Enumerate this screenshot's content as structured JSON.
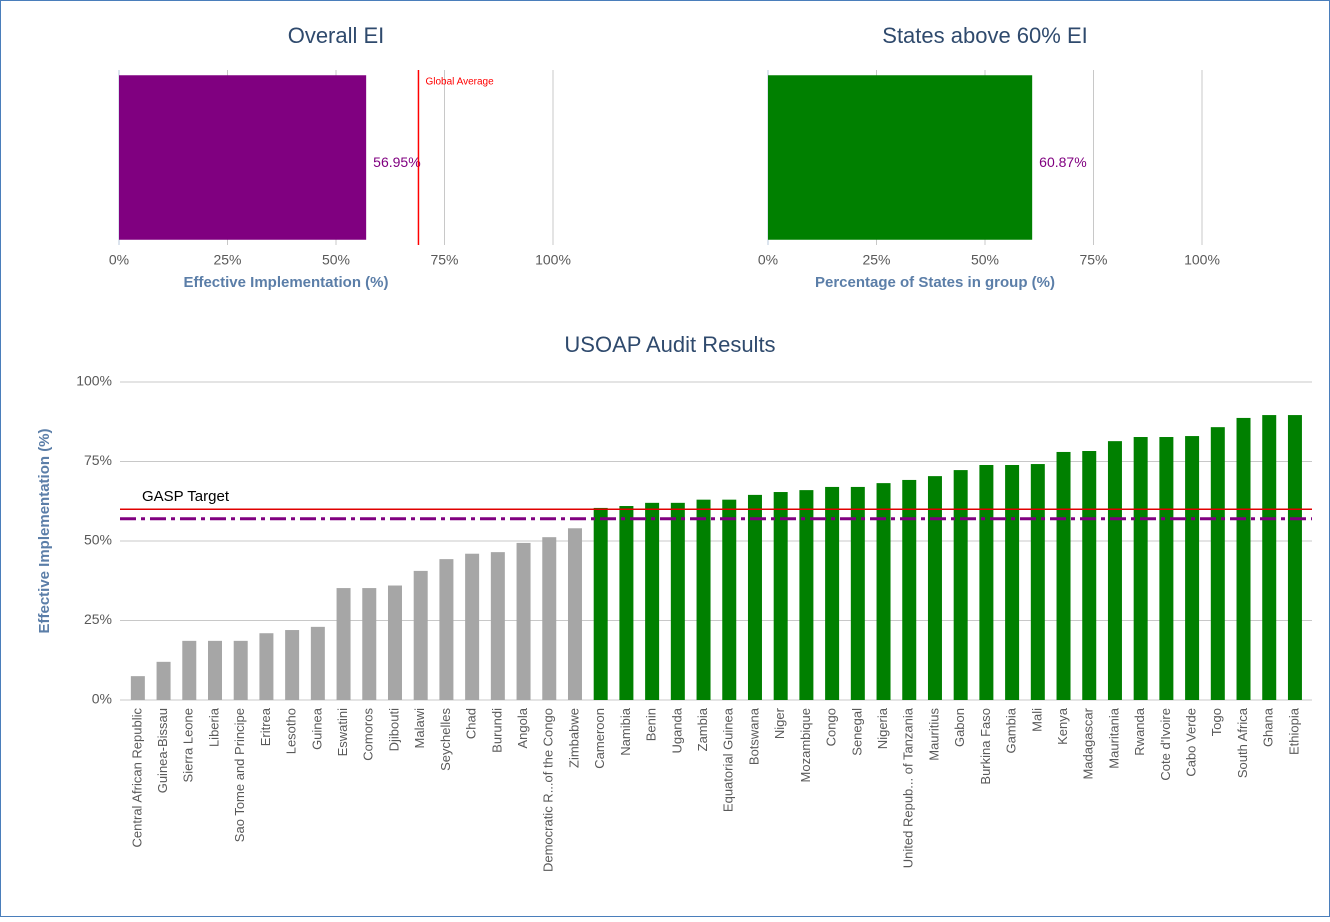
{
  "chart_data": [
    {
      "type": "bar",
      "horizontal": true,
      "title": "Overall EI",
      "categories": [
        null
      ],
      "values": [
        56.95
      ],
      "value_labels": [
        "56.95%"
      ],
      "color": "#800080",
      "xlim": [
        0,
        100
      ],
      "xticks": [
        {
          "value": 0,
          "label": "0%"
        },
        {
          "value": 25,
          "label": "25%"
        },
        {
          "value": 50,
          "label": "50%"
        },
        {
          "value": 75,
          "label": "75%"
        },
        {
          "value": 100,
          "label": "100%"
        }
      ],
      "x_label": "Effective Implementation (%)",
      "grid": true,
      "reference_lines": [
        {
          "label": "Global Average",
          "value": 69,
          "color": "#ff0000"
        }
      ]
    },
    {
      "type": "bar",
      "horizontal": true,
      "title": "States above 60% EI",
      "categories": [
        null
      ],
      "values": [
        60.87
      ],
      "value_labels": [
        "60.87%"
      ],
      "color": "#008000",
      "xlim": [
        0,
        100
      ],
      "xticks": [
        {
          "value": 0,
          "label": "0%"
        },
        {
          "value": 25,
          "label": "25%"
        },
        {
          "value": 50,
          "label": "50%"
        },
        {
          "value": 75,
          "label": "75%"
        },
        {
          "value": 100,
          "label": "100%"
        }
      ],
      "x_label": "Percentage of States in group (%)",
      "grid": true
    },
    {
      "type": "bar",
      "horizontal": false,
      "title": "USOAP Audit Results",
      "categories": [
        "Central African Republic",
        "Guinea-Bissau",
        "Sierra Leone",
        "Liberia",
        "Sao Tome and Principe",
        "Eritrea",
        "Lesotho",
        "Guinea",
        "Eswatini",
        "Comoros",
        "Djibouti",
        "Malawi",
        "Seychelles",
        "Chad",
        "Burundi",
        "Angola",
        "Democratic R...of the Congo",
        "Zimbabwe",
        "Cameroon",
        "Namibia",
        "Benin",
        "Uganda",
        "Zambia",
        "Equatorial Guinea",
        "Botswana",
        "Niger",
        "Mozambique",
        "Congo",
        "Senegal",
        "Nigeria",
        "United Repub... of Tanzania",
        "Mauritius",
        "Gabon",
        "Burkina Faso",
        "Gambia",
        "Mali",
        "Kenya",
        "Madagascar",
        "Mauritania",
        "Rwanda",
        "Cote d'Ivoire",
        "Cabo Verde",
        "Togo",
        "South Africa",
        "Ghana",
        "Ethiopia"
      ],
      "values": [
        7.5,
        12,
        18.6,
        18.6,
        18.6,
        21,
        22,
        23,
        35.2,
        35.2,
        36,
        40.6,
        44.3,
        46,
        46.5,
        49.4,
        51.2,
        54,
        60.4,
        61,
        62,
        62,
        63,
        63,
        64.5,
        65.4,
        66,
        67,
        67,
        68.2,
        69.2,
        70.4,
        72.3,
        73.9,
        73.9,
        74.2,
        78,
        78.3,
        81.4,
        82.7,
        82.7,
        83,
        85.8,
        88.7,
        89.6,
        89.6
      ],
      "colors": [
        "#a6a6a6",
        "#a6a6a6",
        "#a6a6a6",
        "#a6a6a6",
        "#a6a6a6",
        "#a6a6a6",
        "#a6a6a6",
        "#a6a6a6",
        "#a6a6a6",
        "#a6a6a6",
        "#a6a6a6",
        "#a6a6a6",
        "#a6a6a6",
        "#a6a6a6",
        "#a6a6a6",
        "#a6a6a6",
        "#a6a6a6",
        "#a6a6a6",
        "#008000",
        "#008000",
        "#008000",
        "#008000",
        "#008000",
        "#008000",
        "#008000",
        "#008000",
        "#008000",
        "#008000",
        "#008000",
        "#008000",
        "#008000",
        "#008000",
        "#008000",
        "#008000",
        "#008000",
        "#008000",
        "#008000",
        "#008000",
        "#008000",
        "#008000",
        "#008000",
        "#008000",
        "#008000",
        "#008000",
        "#008000",
        "#008000"
      ],
      "ylim": [
        0,
        100
      ],
      "yticks": [
        {
          "value": 0,
          "label": "0%"
        },
        {
          "value": 25,
          "label": "25%"
        },
        {
          "value": 50,
          "label": "50%"
        },
        {
          "value": 75,
          "label": "75%"
        },
        {
          "value": 100,
          "label": "100%"
        }
      ],
      "y_label": "Effective Implementation (%)",
      "grid": true,
      "reference_lines": [
        {
          "label": "GASP Target",
          "value": 60,
          "color": "#e00000"
        },
        {
          "value": 57,
          "color": "#800080",
          "style": "dashdot"
        }
      ]
    }
  ]
}
